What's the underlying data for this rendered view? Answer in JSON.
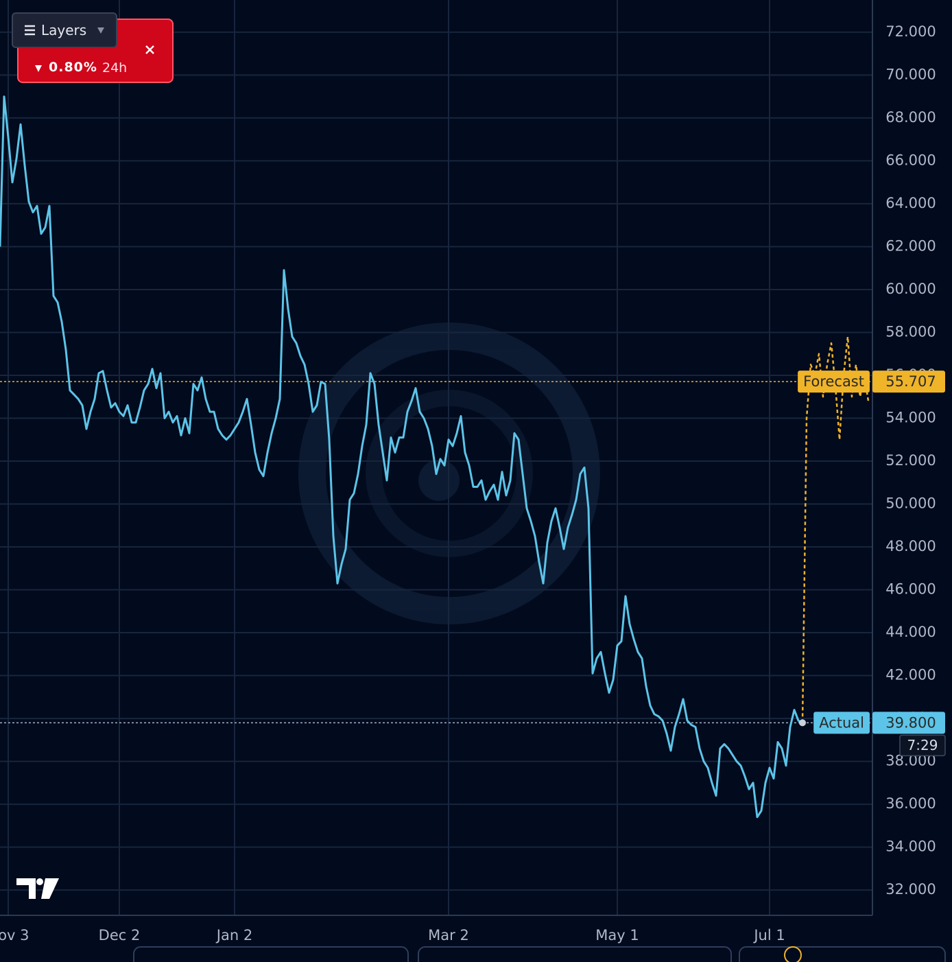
{
  "chart_data": {
    "type": "line",
    "xlim": [
      0,
      212
    ],
    "xticks": [
      {
        "value": 2,
        "label": "Nov 3"
      },
      {
        "value": 29,
        "label": "Dec 2"
      },
      {
        "value": 57,
        "label": "Jan 2"
      },
      {
        "value": 109,
        "label": "Mar 2"
      },
      {
        "value": 150,
        "label": "May 1"
      },
      {
        "value": 187,
        "label": "Jul 1"
      }
    ],
    "ylim": [
      30.82,
      73.5
    ],
    "yticks": [
      {
        "value": 32,
        "label": "32.000"
      },
      {
        "value": 34,
        "label": "34.000"
      },
      {
        "value": 36,
        "label": "36.000"
      },
      {
        "value": 38,
        "label": "38.000"
      },
      {
        "value": 40,
        "label": "40.000"
      },
      {
        "value": 42,
        "label": "42.000"
      },
      {
        "value": 44,
        "label": "44.000"
      },
      {
        "value": 46,
        "label": "46.000"
      },
      {
        "value": 48,
        "label": "48.000"
      },
      {
        "value": 50,
        "label": "50.000"
      },
      {
        "value": 52,
        "label": "52.000"
      },
      {
        "value": 54,
        "label": "54.000"
      },
      {
        "value": 56,
        "label": "56.000"
      },
      {
        "value": 58,
        "label": "58.000"
      },
      {
        "value": 60,
        "label": "60.000"
      },
      {
        "value": 62,
        "label": "62.000"
      },
      {
        "value": 64,
        "label": "64.000"
      },
      {
        "value": 66,
        "label": "66.000"
      },
      {
        "value": 68,
        "label": "68.000"
      },
      {
        "value": 70,
        "label": "70.000"
      },
      {
        "value": 72,
        "label": "72.000"
      }
    ],
    "grid": true,
    "y_axis_side": "right",
    "series": [
      {
        "name": "Actual",
        "color": "#5cc4e8",
        "line_style": "solid",
        "line_value": 39.8,
        "line_value_label": "39.800",
        "x": [
          0,
          1,
          2,
          3,
          4,
          5,
          6,
          7,
          8,
          9,
          10,
          11,
          12,
          13,
          14,
          15,
          16,
          17,
          18,
          19,
          20,
          21,
          22,
          23,
          24,
          25,
          26,
          27,
          28,
          29,
          30,
          31,
          32,
          33,
          34,
          35,
          36,
          37,
          38,
          39,
          40,
          41,
          42,
          43,
          44,
          45,
          46,
          47,
          48,
          49,
          50,
          51,
          52,
          53,
          54,
          55,
          56,
          57,
          58,
          59,
          60,
          61,
          62,
          63,
          64,
          65,
          66,
          67,
          68,
          69,
          70,
          71,
          72,
          73,
          74,
          75,
          76,
          77,
          78,
          79,
          80,
          81,
          82,
          83,
          84,
          85,
          86,
          87,
          88,
          89,
          90,
          91,
          92,
          93,
          94,
          95,
          96,
          97,
          98,
          99,
          100,
          101,
          102,
          103,
          104,
          105,
          106,
          107,
          108,
          109,
          110,
          111,
          112,
          113,
          114,
          115,
          116,
          117,
          118,
          119,
          120,
          121,
          122,
          123,
          124,
          125,
          126,
          127,
          128,
          129,
          130,
          131,
          132,
          133,
          134,
          135,
          136,
          137,
          138,
          139,
          140,
          141,
          142,
          143,
          144,
          145,
          146,
          147,
          148,
          149,
          150,
          151,
          152,
          153,
          154,
          155,
          156,
          157,
          158,
          159,
          160,
          161,
          162,
          163,
          164,
          165,
          166,
          167,
          168,
          169,
          170,
          171,
          172,
          173,
          174,
          175,
          176,
          177,
          178,
          179,
          180,
          181,
          182,
          183,
          184,
          185,
          186,
          187,
          188,
          189,
          190,
          191,
          192,
          193,
          194,
          195
        ],
        "values": [
          62.0,
          69.0,
          67.1,
          65.0,
          66.1,
          67.7,
          65.8,
          64.1,
          63.6,
          63.9,
          62.6,
          62.9,
          63.9,
          59.7,
          59.4,
          58.5,
          57.2,
          55.3,
          55.1,
          54.9,
          54.6,
          53.5,
          54.3,
          54.9,
          56.1,
          56.2,
          55.3,
          54.5,
          54.7,
          54.3,
          54.1,
          54.6,
          53.8,
          53.8,
          54.5,
          55.3,
          55.6,
          56.3,
          55.4,
          56.1,
          54.0,
          54.3,
          53.8,
          54.1,
          53.2,
          54.0,
          53.3,
          55.6,
          55.3,
          55.9,
          54.9,
          54.3,
          54.3,
          53.5,
          53.2,
          53.0,
          53.2,
          53.5,
          53.8,
          54.3,
          54.9,
          53.7,
          52.4,
          51.6,
          51.3,
          52.4,
          53.3,
          54.0,
          54.9,
          60.9,
          59.1,
          57.8,
          57.5,
          56.9,
          56.5,
          55.6,
          54.3,
          54.6,
          55.7,
          55.6,
          53.0,
          48.5,
          46.3,
          47.2,
          47.9,
          50.2,
          50.5,
          51.4,
          52.7,
          53.7,
          56.1,
          55.6,
          53.7,
          52.4,
          51.1,
          53.1,
          52.4,
          53.1,
          53.1,
          54.3,
          54.8,
          55.4,
          54.3,
          54.0,
          53.5,
          52.7,
          51.4,
          52.1,
          51.8,
          53.0,
          52.7,
          53.3,
          54.1,
          52.4,
          51.8,
          50.8,
          50.8,
          51.1,
          50.2,
          50.6,
          50.9,
          50.2,
          51.5,
          50.4,
          51.1,
          53.3,
          53.0,
          51.4,
          49.8,
          49.2,
          48.5,
          47.3,
          46.3,
          48.2,
          49.2,
          49.8,
          48.9,
          47.9,
          48.9,
          49.5,
          50.2,
          51.4,
          51.7,
          49.8,
          42.1,
          42.8,
          43.1,
          42.1,
          41.2,
          41.8,
          43.4,
          43.6,
          45.7,
          44.4,
          43.7,
          43.1,
          42.8,
          41.5,
          40.6,
          40.2,
          40.1,
          39.9,
          39.3,
          38.5,
          39.6,
          40.2,
          40.9,
          39.9,
          39.7,
          39.6,
          38.6,
          38.0,
          37.7,
          37.0,
          36.4,
          38.6,
          38.8,
          38.6,
          38.3,
          38.0,
          37.8,
          37.3,
          36.7,
          37.0,
          35.4,
          35.7,
          37.0,
          37.7,
          37.2,
          38.9,
          38.6,
          37.8,
          39.6,
          40.4,
          39.9,
          39.8
        ]
      },
      {
        "name": "Forecast",
        "color": "#f0b429",
        "line_style": "dashed",
        "line_value": 55.707,
        "x": [
          195,
          196,
          197,
          198,
          199,
          200,
          201,
          202,
          203,
          204,
          205,
          206,
          207,
          208,
          209,
          210,
          211
        ],
        "values": [
          39.8,
          54.0,
          56.5,
          56.0,
          57.0,
          55.0,
          56.5,
          57.5,
          55.5,
          53.0,
          56.0,
          57.8,
          55.0,
          56.5,
          55.0,
          56.0,
          54.8
        ]
      }
    ],
    "countdown": "7:29"
  },
  "toolbar": {
    "button": "Layers",
    "change": "0.80%",
    "period": "24h"
  }
}
